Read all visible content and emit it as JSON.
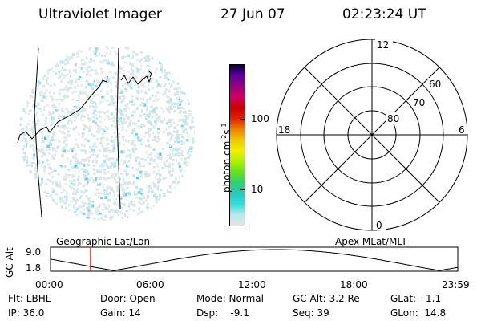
{
  "header": {
    "instrument": "Ultraviolet Imager",
    "date": "27 Jun 07",
    "time": "02:23:24 UT"
  },
  "colorbar": {
    "label_prefix": "photon cm",
    "label_exp1": "-2",
    "label_mid": "s",
    "label_exp2": "-1",
    "tick_high": "100",
    "tick_low": "10",
    "colors": [
      "#e0e4e8",
      "#b8e8ec",
      "#2ee0d8",
      "#28c8c0",
      "#30d070",
      "#66e020",
      "#b0f000",
      "#f0f000",
      "#f0c800",
      "#f08000",
      "#e02000",
      "#c80000",
      "#d00060",
      "#980080",
      "#5c00a0",
      "#10003c"
    ]
  },
  "polar": {
    "label_top": "12",
    "label_bottom": "0",
    "label_left": "18",
    "label_right": "6",
    "ring_labels": [
      "60",
      "70",
      "80"
    ]
  },
  "timeline": {
    "left_title": "Geographic Lat/Lon",
    "right_title": "Apex MLat/MLT",
    "ylabel": "GC Alt",
    "y_high": "9.0",
    "y_low": "1.8",
    "x_ticks": [
      "00:00",
      "06:00",
      "12:00",
      "18:00",
      "23:59"
    ],
    "marker_fraction": 0.098
  },
  "status": {
    "flt": "Flt: LBHL",
    "door": "Door: Open",
    "mode": "Mode: Normal",
    "gc_alt": "GC Alt: 3.2 Re",
    "glat": "GLat:  -1.1",
    "ip": "IP: 36.0",
    "gain": "Gain: 14",
    "dsp": "Dsp:    -9.1",
    "seq": "Seq: 39",
    "glon": "GLon:  14.8"
  },
  "colors": {
    "foreground": "#000000",
    "marker": "#ff0000",
    "emission_light": "#d8e8ea",
    "emission_cyan": "#30d8d8"
  }
}
